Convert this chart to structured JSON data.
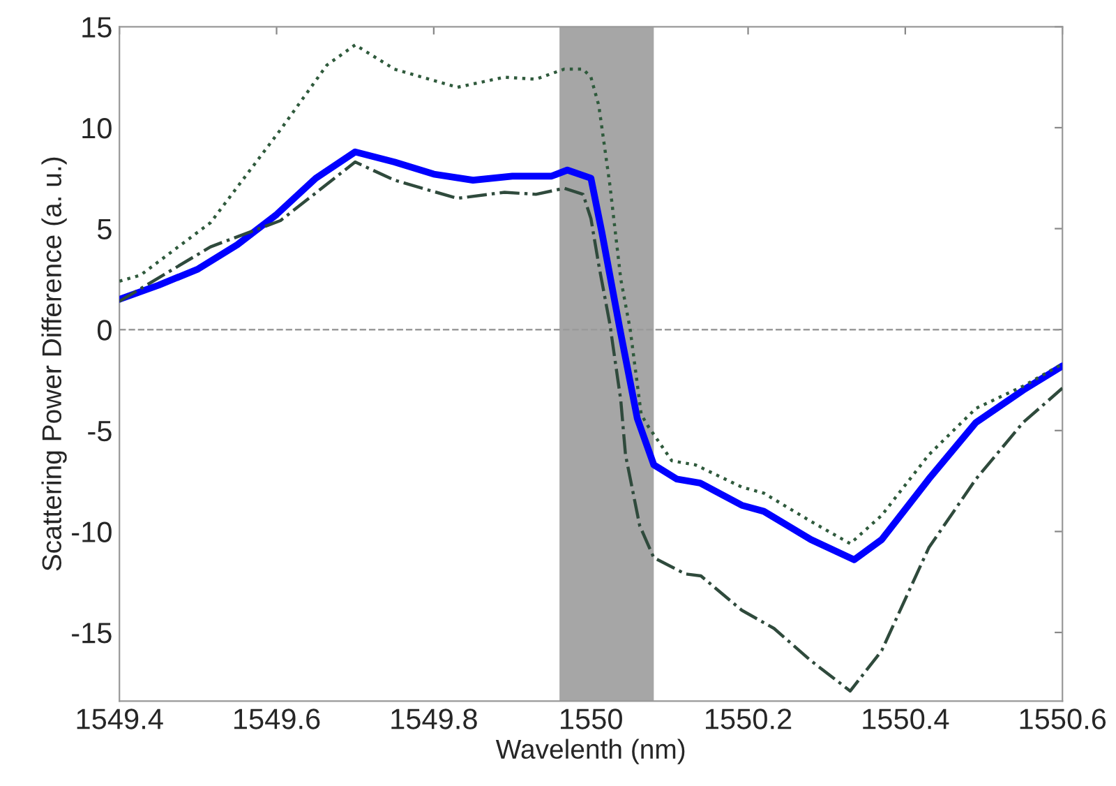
{
  "chart_data": {
    "type": "line",
    "xlabel": "Wavelenth (nm)",
    "ylabel": "Scattering Power Difference (a. u.)",
    "xlim": [
      1549.4,
      1550.6
    ],
    "xticks": [
      1549.4,
      1549.6,
      1549.8,
      1550,
      1550.2,
      1550.4,
      1550.6
    ],
    "ylim": [
      -18.4,
      15
    ],
    "yticks": [
      -15,
      -10,
      -5,
      0,
      5,
      10,
      15
    ],
    "grid": false,
    "marker": "none",
    "bands": [
      {
        "axis": "x",
        "from": 1549.96,
        "to": 1550.08,
        "color": "#a6a6a6"
      }
    ],
    "ref_lines": [
      {
        "axis": "y",
        "value": 0,
        "color": "#9a9a9a",
        "line_style": "dashed"
      }
    ],
    "series": [
      {
        "color": "#2f5a3c",
        "line_style": "dotted",
        "x": [
          1549.4,
          1549.427,
          1549.516,
          1549.605,
          1549.664,
          1549.7,
          1549.75,
          1549.83,
          1549.89,
          1549.93,
          1549.966,
          1549.99,
          1550.0,
          1550.01,
          1550.024,
          1550.038,
          1550.05,
          1550.064,
          1550.073,
          1550.103,
          1550.133,
          1550.192,
          1550.22,
          1550.28,
          1550.33,
          1550.37,
          1550.43,
          1550.49,
          1550.55,
          1550.6
        ],
        "values": [
          2.4,
          2.7,
          5.3,
          9.9,
          13.1,
          14.1,
          12.9,
          12.0,
          12.5,
          12.4,
          12.9,
          12.9,
          12.5,
          11.1,
          7.2,
          2.5,
          0,
          -4.2,
          -4.8,
          -6.5,
          -6.7,
          -7.8,
          -8.1,
          -9.5,
          -10.6,
          -9.2,
          -6.2,
          -3.9,
          -2.8,
          -1.7
        ]
      },
      {
        "color": "#2f4a3c",
        "line_style": "dashdot",
        "x": [
          1549.4,
          1549.516,
          1549.605,
          1549.7,
          1549.75,
          1549.83,
          1549.89,
          1549.93,
          1549.966,
          1549.99,
          1550.0,
          1550.01,
          1550.024,
          1550.038,
          1550.044,
          1550.062,
          1550.08,
          1550.12,
          1550.14,
          1550.192,
          1550.233,
          1550.28,
          1550.33,
          1550.37,
          1550.43,
          1550.49,
          1550.55,
          1550.6
        ],
        "values": [
          1.4,
          4.1,
          5.4,
          8.3,
          7.4,
          6.5,
          6.8,
          6.7,
          7.0,
          6.7,
          5.5,
          3.2,
          0.3,
          -3.5,
          -6.2,
          -9.7,
          -11.3,
          -12.1,
          -12.2,
          -13.9,
          -14.8,
          -16.4,
          -17.9,
          -15.9,
          -10.8,
          -7.4,
          -4.6,
          -2.9
        ]
      },
      {
        "color": "#0000ff",
        "line_style": "solid",
        "x": [
          1549.4,
          1549.45,
          1549.5,
          1549.55,
          1549.6,
          1549.65,
          1549.7,
          1549.75,
          1549.8,
          1549.85,
          1549.9,
          1549.95,
          1549.97,
          1550.0,
          1550.014,
          1550.037,
          1550.059,
          1550.08,
          1550.109,
          1550.139,
          1550.192,
          1550.22,
          1550.28,
          1550.335,
          1550.37,
          1550.43,
          1550.49,
          1550.55,
          1550.6
        ],
        "values": [
          1.5,
          2.2,
          3.0,
          4.2,
          5.7,
          7.5,
          8.8,
          8.3,
          7.7,
          7.4,
          7.6,
          7.6,
          7.9,
          7.5,
          4.8,
          0,
          -4.4,
          -6.7,
          -7.4,
          -7.6,
          -8.7,
          -9.0,
          -10.4,
          -11.4,
          -10.4,
          -7.4,
          -4.6,
          -3.0,
          -1.8
        ]
      }
    ]
  }
}
